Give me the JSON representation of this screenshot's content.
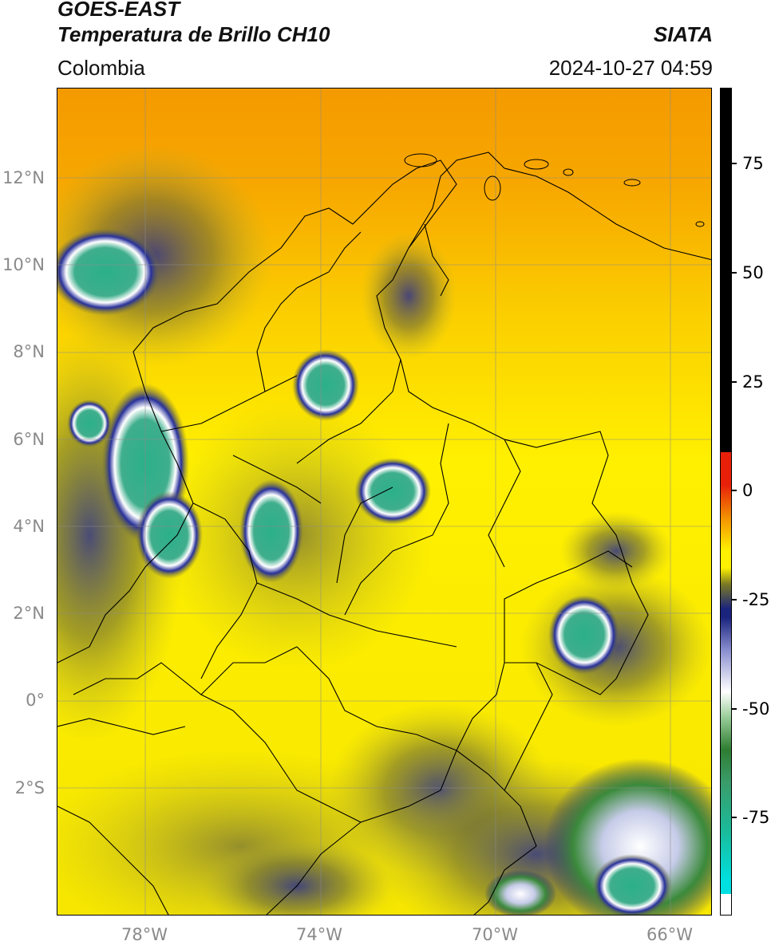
{
  "header": {
    "satellite": "GOES-EAST",
    "product": "Temperatura de Brillo CH10",
    "brand": "SIATA",
    "region": "Colombia",
    "timestamp": "2024-10-27 04:59"
  },
  "map": {
    "lat_labels": [
      "12°N",
      "10°N",
      "8°N",
      "6°N",
      "4°N",
      "2°N",
      "0°",
      "2°S"
    ],
    "lon_labels": [
      "78°W",
      "74°W",
      "70°W",
      "66°W"
    ],
    "lon_range": [
      -80,
      -65
    ],
    "lat_range": [
      -5,
      14
    ],
    "gridlines": true
  },
  "colorbar": {
    "labels": [
      "75",
      "50",
      "25",
      "0",
      "-25",
      "-50",
      "-75"
    ],
    "range": [
      -95,
      90
    ],
    "colors": {
      "positive": "#000000",
      "warm": "#e8200a",
      "orange": "#f39200",
      "yellow": "#fff200",
      "olive": "#7b7a25",
      "navy": "#1a237e",
      "white": "#ffffff",
      "green": "#2e7d32",
      "teal": "#1abc9c",
      "cyan": "#00e0e0"
    }
  }
}
